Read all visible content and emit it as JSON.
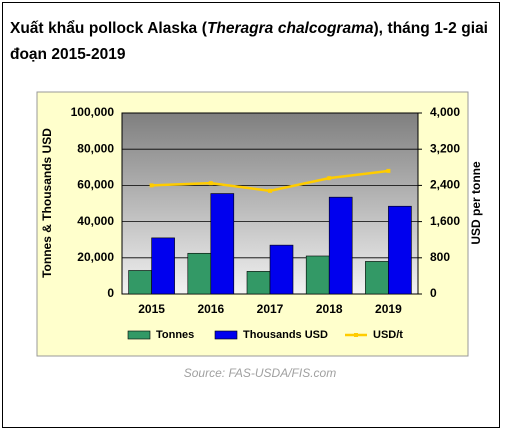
{
  "chart_data": {
    "type": "bar-line",
    "title_parts": [
      "Xuất khẩu pollock Alaska (",
      "Theragra chalcograma",
      "), tháng 1-2 giai đoạn 2015-2019"
    ],
    "ylabel": "Tonnes & Thousands USD",
    "y2label": "USD per tonne",
    "source": "Source: FAS-USDA/FIS.com",
    "categories": [
      "2015",
      "2016",
      "2017",
      "2018",
      "2019"
    ],
    "series": [
      {
        "name": "Tonnes",
        "color": "#339966",
        "kind": "bar",
        "values": [
          13000,
          22500,
          12500,
          21000,
          18000
        ]
      },
      {
        "name": "Thousands USD",
        "color": "#0000ee",
        "kind": "bar",
        "values": [
          31000,
          55500,
          27000,
          53500,
          48500
        ]
      },
      {
        "name": "USD/t",
        "color": "#ffcc00",
        "kind": "line",
        "axis": "y2",
        "values": [
          2400,
          2450,
          2280,
          2560,
          2720
        ]
      }
    ],
    "ylim": [
      0,
      100000
    ],
    "yticks": [
      0,
      {
        "value": 20000,
        "label": "20,000"
      },
      {
        "value": 40000,
        "label": "40,000"
      },
      {
        "value": 60000,
        "label": "60,000"
      },
      {
        "value": 80000,
        "label": "80,000"
      },
      {
        "value": 100000,
        "label": "100,000"
      }
    ],
    "y2lim": [
      0,
      4000
    ],
    "y2ticks": [
      0,
      800,
      {
        "value": 1600,
        "label": "1,600"
      },
      {
        "value": 2400,
        "label": "2,400"
      },
      {
        "value": 3200,
        "label": "3,200"
      },
      {
        "value": 4000,
        "label": "4,000"
      }
    ],
    "grid": true
  }
}
